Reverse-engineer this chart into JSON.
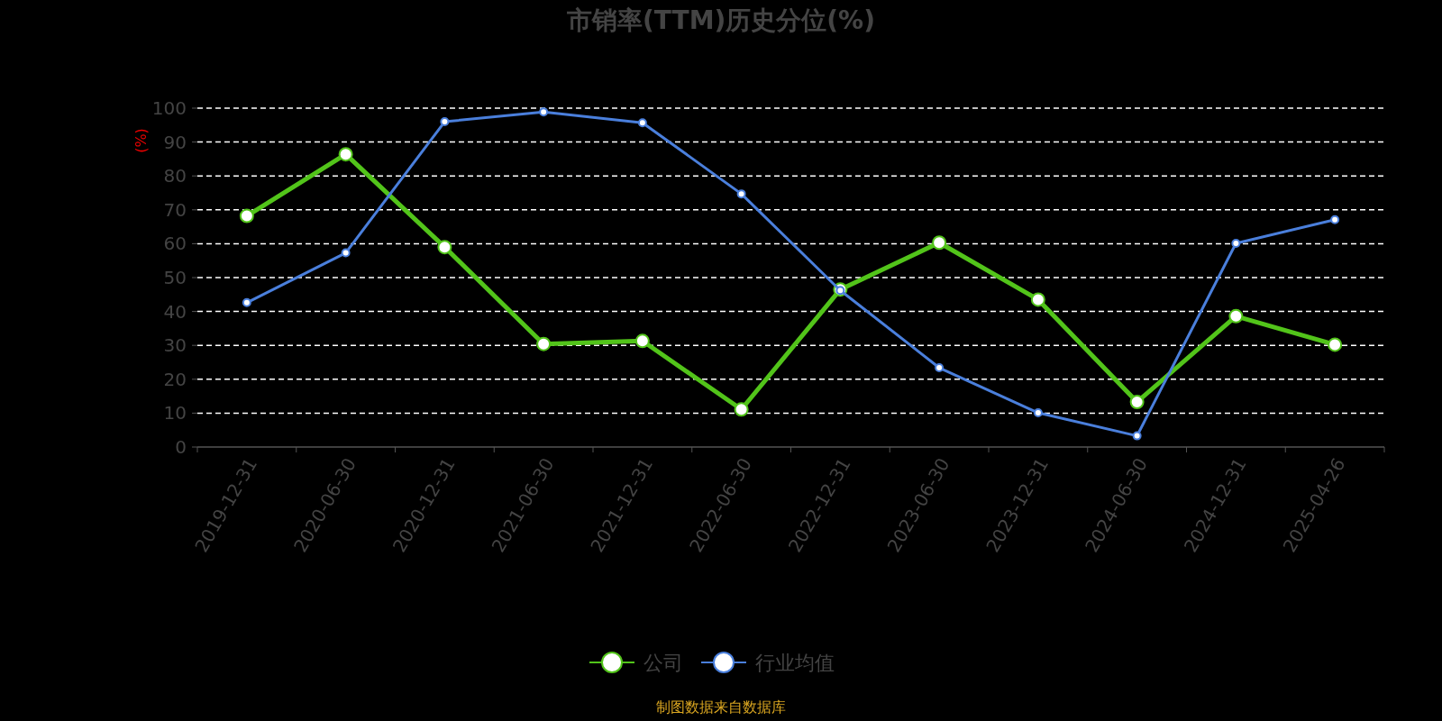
{
  "chart_data": {
    "type": "line",
    "title": "市销率(TTM)历史分位(%)",
    "ylabel": "(%)",
    "categories": [
      "2019-12-31",
      "2020-06-30",
      "2020-12-31",
      "2021-06-30",
      "2021-12-31",
      "2022-06-30",
      "2022-12-31",
      "2023-06-30",
      "2023-12-31",
      "2024-06-30",
      "2024-12-31",
      "2025-04-26"
    ],
    "series": [
      {
        "name": "公司",
        "color": "#52c41a",
        "values": [
          68.2,
          86.4,
          59,
          30.4,
          31.3,
          11.1,
          46.5,
          60.3,
          43.5,
          13.3,
          38.6,
          30.2
        ]
      },
      {
        "name": "行业均值",
        "color": "#4a7fdc",
        "values": [
          42.6,
          57.3,
          96,
          98.9,
          95.7,
          74.7,
          46.2,
          23.4,
          10.1,
          3.3,
          60.1,
          67.1
        ]
      }
    ],
    "ylim": [
      0,
      100
    ],
    "yticks": [
      0,
      10,
      20,
      30,
      40,
      50,
      60,
      70,
      80,
      90,
      100
    ],
    "grid": "y",
    "legend": "bottom",
    "marker": "circle",
    "line_style": "solid",
    "annotations": [
      "制图数据来自数据库"
    ]
  }
}
